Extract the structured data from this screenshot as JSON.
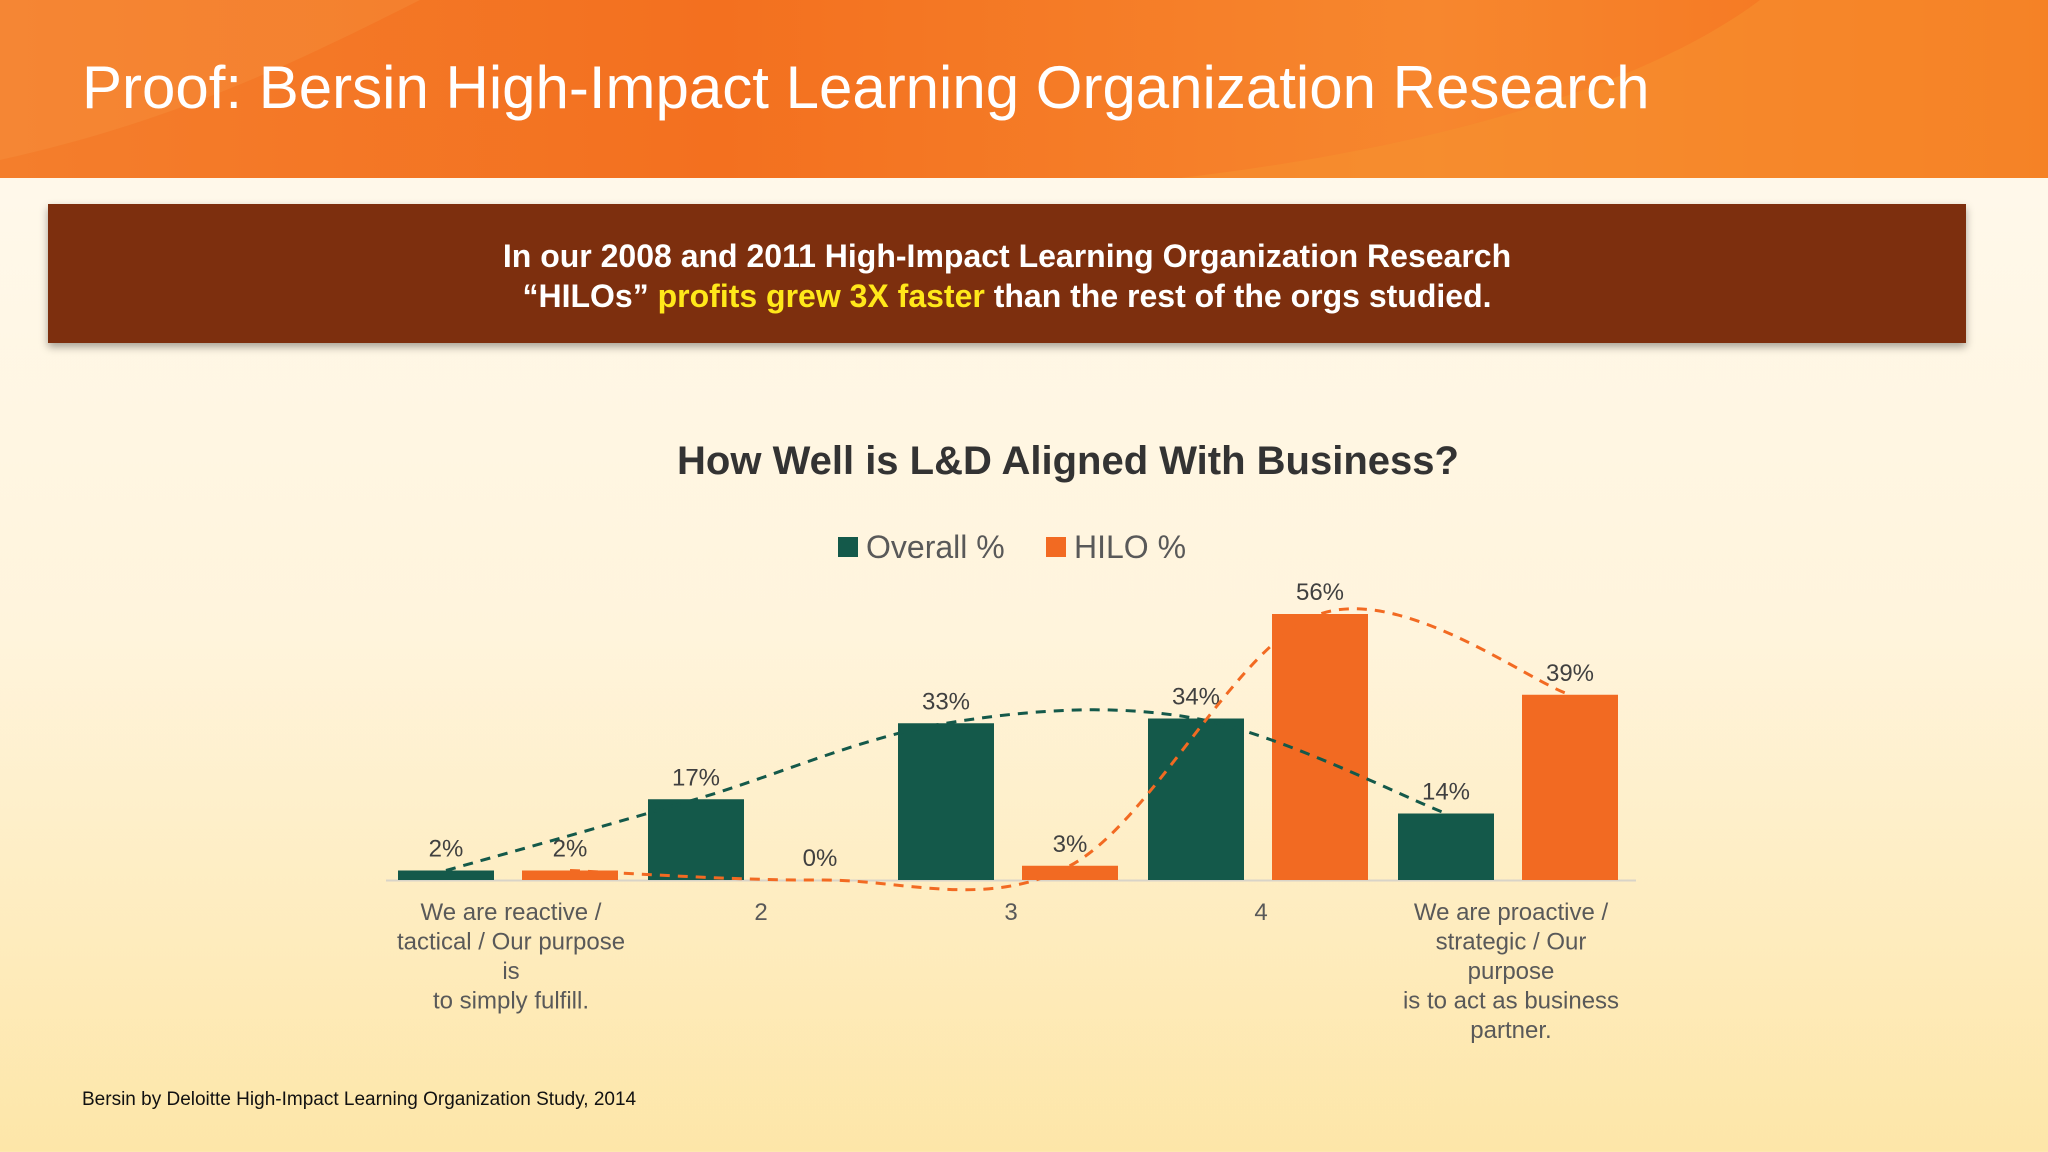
{
  "slide": {
    "title": "Proof:  Bersin High-Impact Learning Organization Research",
    "banner": {
      "line1": "In our 2008 and 2011 High-Impact Learning Organization Research",
      "line2_prefix": "“HILOs” ",
      "line2_highlight": "profits grew 3X faster",
      "line2_suffix": " than the rest of the orgs studied."
    },
    "source": "Bersin by Deloitte High-Impact Learning Organization Study, 2014"
  },
  "colors": {
    "header": "#f47320",
    "banner": "#7d2f0e",
    "highlight": "#ffe81a",
    "overall": "#14594a",
    "hilo": "#f26a22"
  },
  "chart_data": {
    "type": "bar",
    "title": "How Well is L&D Aligned With Business?",
    "categories": [
      [
        "We are reactive /",
        "tactical / Our purpose",
        "is",
        "to simply fulfill."
      ],
      [
        "2"
      ],
      [
        "3"
      ],
      [
        "4"
      ],
      [
        "We are proactive /",
        "strategic / Our",
        "purpose",
        "is to act as business",
        "partner."
      ]
    ],
    "series": [
      {
        "name": "Overall %",
        "values": [
          2,
          17,
          33,
          34,
          14
        ],
        "labels": [
          "2%",
          "17%",
          "33%",
          "34%",
          "14%"
        ],
        "color": "#14594a"
      },
      {
        "name": "HILO %",
        "values": [
          2,
          0,
          3,
          56,
          39
        ],
        "labels": [
          "2%",
          "0%",
          "3%",
          "56%",
          "39%"
        ],
        "color": "#f26a22"
      }
    ],
    "trendlines": "dashed smooth curve per series",
    "legend": "top",
    "ylim": [
      0,
      60
    ],
    "grid": false
  }
}
